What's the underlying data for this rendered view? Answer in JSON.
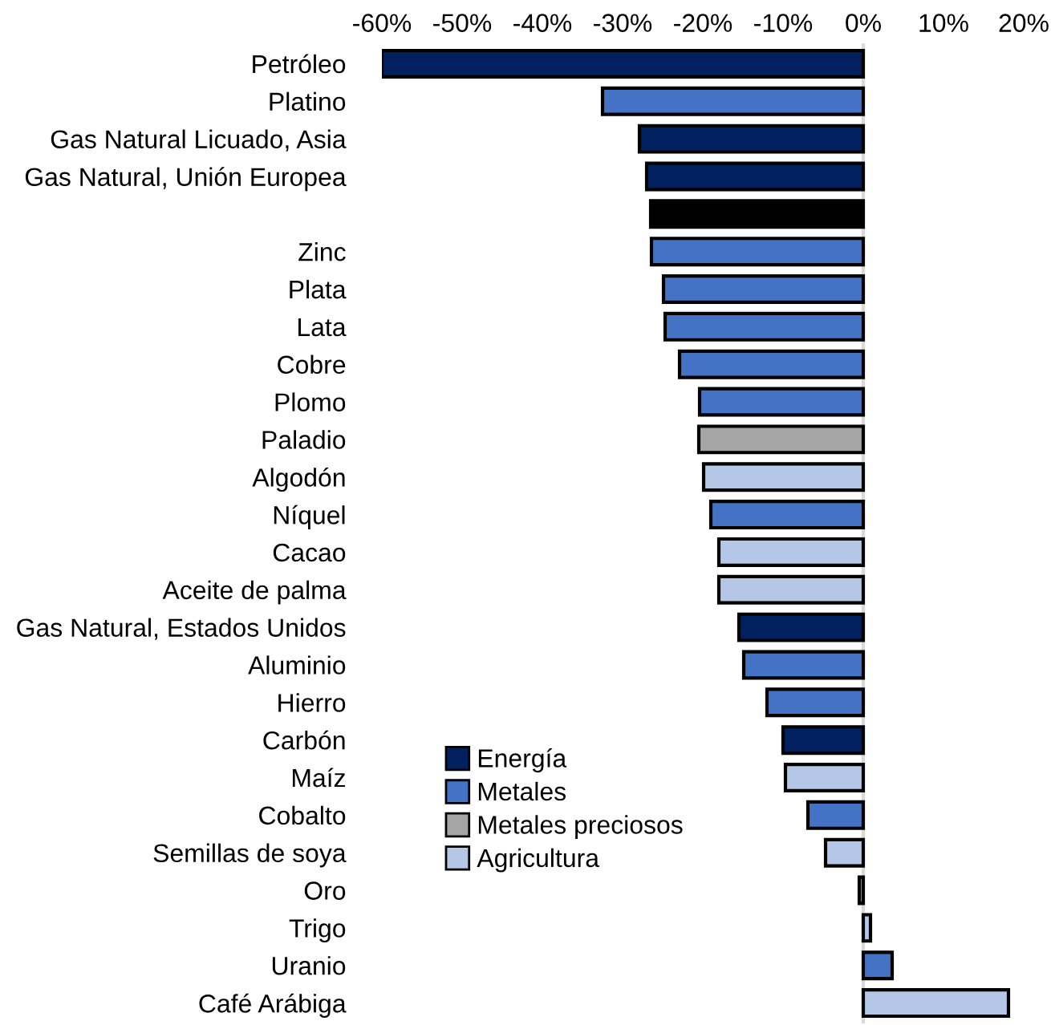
{
  "chart_data": {
    "type": "bar",
    "orientation": "horizontal",
    "categories": [
      "Petróleo",
      "Platino",
      "Gas Natural Licuado, Asia",
      "Gas Natural, Unión Europea",
      null,
      "Zinc",
      "Plata",
      "Lata",
      "Cobre",
      "Plomo",
      "Paladio",
      "Algodón",
      "Níquel",
      "Cacao",
      "Aceite de palma",
      "Gas Natural, Estados Unidos",
      "Aluminio",
      "Hierro",
      "Carbón",
      "Maíz",
      "Cobalto",
      "Semillas de soya",
      "Oro",
      "Trigo",
      "Uranio",
      "Café Arábiga"
    ],
    "series": [
      {
        "name": "Energía",
        "color": "#002060",
        "values": [
          -60,
          null,
          -27.9,
          -27,
          null,
          null,
          null,
          null,
          null,
          null,
          null,
          null,
          null,
          null,
          null,
          -15.5,
          null,
          null,
          -10,
          null,
          null,
          null,
          null,
          null,
          null,
          null
        ]
      },
      {
        "name": "Metales",
        "color": "#4472c4",
        "values": [
          null,
          -32.5,
          null,
          null,
          null,
          -26.4,
          -24.9,
          -24.7,
          -22.9,
          -20.4,
          null,
          null,
          -19,
          null,
          null,
          null,
          -14.9,
          -12,
          null,
          null,
          -6.9,
          null,
          null,
          null,
          3.6,
          null
        ]
      },
      {
        "name": "Metales preciosos",
        "color": "#a5a5a5",
        "values": [
          null,
          null,
          null,
          null,
          null,
          null,
          null,
          null,
          null,
          null,
          -20.5,
          null,
          null,
          null,
          null,
          null,
          null,
          null,
          null,
          null,
          null,
          null,
          -0.5,
          null,
          null,
          null
        ]
      },
      {
        "name": "Agricultura",
        "color": "#b4c7e7",
        "values": [
          null,
          null,
          null,
          null,
          null,
          null,
          null,
          null,
          null,
          null,
          null,
          -19.9,
          null,
          -18,
          -18,
          null,
          null,
          null,
          null,
          -9.7,
          null,
          -4.7,
          null,
          0.9,
          null,
          18.1
        ]
      },
      {
        "color": "#000000",
        "values": [
          null,
          null,
          null,
          null,
          -26.5,
          null,
          null,
          null,
          null,
          null,
          null,
          null,
          null,
          null,
          null,
          null,
          null,
          null,
          null,
          null,
          null,
          null,
          null,
          null,
          null,
          null
        ]
      }
    ],
    "xlim": [
      -60,
      20
    ],
    "xticks": [
      {
        "value": -60,
        "label": "-60%"
      },
      {
        "value": -50,
        "label": "-50%"
      },
      {
        "value": -40,
        "label": "-40%"
      },
      {
        "value": -30,
        "label": "-30%"
      },
      {
        "value": -20,
        "label": "-20%"
      },
      {
        "value": -10,
        "label": "-10%"
      },
      {
        "value": 0,
        "label": "0%"
      },
      {
        "value": 10,
        "label": "10%"
      },
      {
        "value": 20,
        "label": "20%"
      }
    ],
    "legend": "bottom left"
  }
}
